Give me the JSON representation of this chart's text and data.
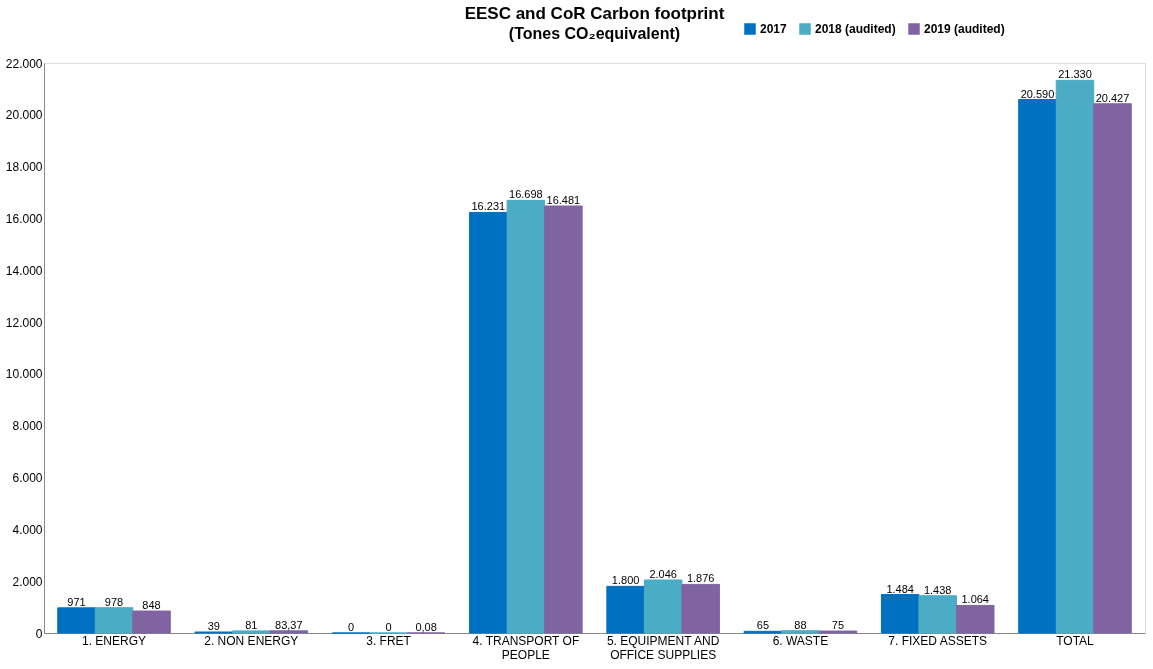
{
  "chart_data": {
    "type": "bar",
    "title": "EESC and CoR Carbon footprint",
    "subtitle": "(Tones CO₂equivalent)",
    "categories": [
      "1. ENERGY",
      "2. NON ENERGY",
      "3. FRET",
      "4. TRANSPORT OF PEOPLE",
      "5. EQUIPMENT AND OFFICE SUPPLIES",
      "6. WASTE",
      "7. FIXED ASSETS",
      "TOTAL"
    ],
    "series": [
      {
        "name": "2017",
        "color": "#0070c0",
        "values": [
          971,
          39,
          0,
          16231,
          1800,
          65,
          1484,
          20590
        ],
        "value_labels": [
          "971",
          "39",
          "0",
          "16.231",
          "1.800",
          "65",
          "1.484",
          "20.590"
        ]
      },
      {
        "name": "2018 (audited)",
        "color": "#4bacc6",
        "values": [
          978,
          81,
          0,
          16698,
          2046,
          88,
          1438,
          21330
        ],
        "value_labels": [
          "978",
          "81",
          "0",
          "16.698",
          "2.046",
          "88",
          "1.438",
          "21.330"
        ]
      },
      {
        "name": "2019 (audited)",
        "color": "#8064a2",
        "values": [
          848,
          83.37,
          0.08,
          16481,
          1876,
          75,
          1064,
          20427
        ],
        "value_labels": [
          "848",
          "83,37",
          "0,08",
          "16.481",
          "1.876",
          "75",
          "1.064",
          "20.427"
        ]
      }
    ],
    "ylim": [
      0,
      22000
    ],
    "yticks": [
      {
        "value": 0,
        "label": "0"
      },
      {
        "value": 2000,
        "label": "2.000"
      },
      {
        "value": 4000,
        "label": "4.000"
      },
      {
        "value": 6000,
        "label": "6.000"
      },
      {
        "value": 8000,
        "label": "8.000"
      },
      {
        "value": 10000,
        "label": "10.000"
      },
      {
        "value": 12000,
        "label": "12.000"
      },
      {
        "value": 14000,
        "label": "14.000"
      },
      {
        "value": 16000,
        "label": "16.000"
      },
      {
        "value": 18000,
        "label": "18.000"
      },
      {
        "value": 20000,
        "label": "20.000"
      },
      {
        "value": 22000,
        "label": "22.000"
      }
    ],
    "grid": false,
    "legend": "top right"
  }
}
